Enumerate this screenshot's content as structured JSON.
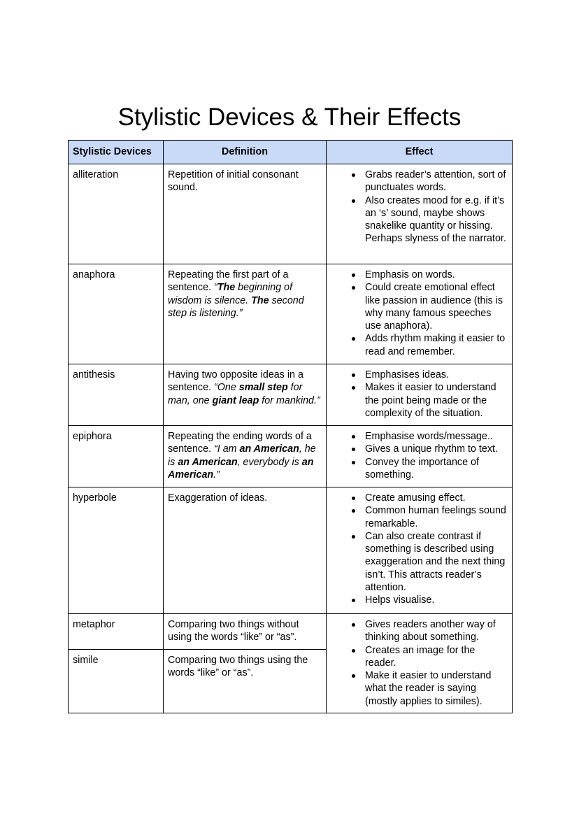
{
  "title": "Stylistic Devices & Their Effects",
  "headers": [
    "Stylistic Devices",
    "Definition",
    "Effect"
  ],
  "rows": [
    {
      "device": "alliteration",
      "definition": [
        {
          "t": "Repetition of initial consonant sound."
        }
      ],
      "effects": [
        "Grabs reader’s attention, sort of punctuates words.",
        "Also creates mood for e.g. if it’s an ‘s’ sound, maybe shows snakelike quantity or hissing. Perhaps slyness of the narrator."
      ]
    },
    {
      "device": "anaphora",
      "definition": [
        {
          "t": "Repeating the first part of a sentence. "
        },
        {
          "t": "“",
          "s": "i"
        },
        {
          "t": "The",
          "s": "bi"
        },
        {
          "t": " beginning of wisdom is silence. ",
          "s": "i"
        },
        {
          "t": "The",
          "s": "bi"
        },
        {
          "t": " second step is listening.”",
          "s": "i"
        }
      ],
      "effects": [
        "Emphasis on words.",
        "Could create emotional effect like passion in audience (this is why many famous speeches use anaphora).",
        "Adds rhythm making it easier to read and remember."
      ]
    },
    {
      "device": "antithesis",
      "definition": [
        {
          "t": "Having two opposite ideas in a sentence. "
        },
        {
          "t": "“One ",
          "s": "i"
        },
        {
          "t": "small step",
          "s": "bi"
        },
        {
          "t": " for man, one ",
          "s": "i"
        },
        {
          "t": "giant leap",
          "s": "bi"
        },
        {
          "t": " for mankind.”",
          "s": "i"
        }
      ],
      "effects": [
        "Emphasises ideas.",
        "Makes it easier to understand the point being made or the complexity of the situation."
      ]
    },
    {
      "device": "epiphora",
      "definition": [
        {
          "t": "Repeating the ending words of a sentence. "
        },
        {
          "t": "“I am ",
          "s": "i"
        },
        {
          "t": "an American",
          "s": "bi"
        },
        {
          "t": ", he is ",
          "s": "i"
        },
        {
          "t": "an American",
          "s": "bi"
        },
        {
          "t": ", everybody is ",
          "s": "i"
        },
        {
          "t": "an American",
          "s": "bi"
        },
        {
          "t": ".”",
          "s": "i"
        }
      ],
      "effects": [
        "Emphasise words/message..",
        "Gives a unique rhythm to text.",
        "Convey the importance of something."
      ]
    },
    {
      "device": "hyperbole",
      "definition": [
        {
          "t": "Exaggeration of ideas."
        }
      ],
      "effects": [
        "Create amusing effect.",
        "Common human feelings sound remarkable.",
        "Can also create contrast if something is described using exaggeration and the next thing isn’t. This attracts reader’s attention.",
        "Helps visualise."
      ]
    },
    {
      "device": "metaphor",
      "definition": [
        {
          "t": "Comparing two things without using the words “like” or “as”."
        }
      ],
      "effects": [
        "Gives readers another way of thinking about something.",
        "Creates an image for the reader.",
        "Make it easier to understand what the reader is saying (mostly applies to similes)."
      ]
    },
    {
      "device": "simile",
      "definition": [
        {
          "t": "Comparing two things using the words “like” or “as”."
        }
      ]
    }
  ],
  "colors": {
    "header_bg": "#c9daf8",
    "border": "#000000"
  }
}
